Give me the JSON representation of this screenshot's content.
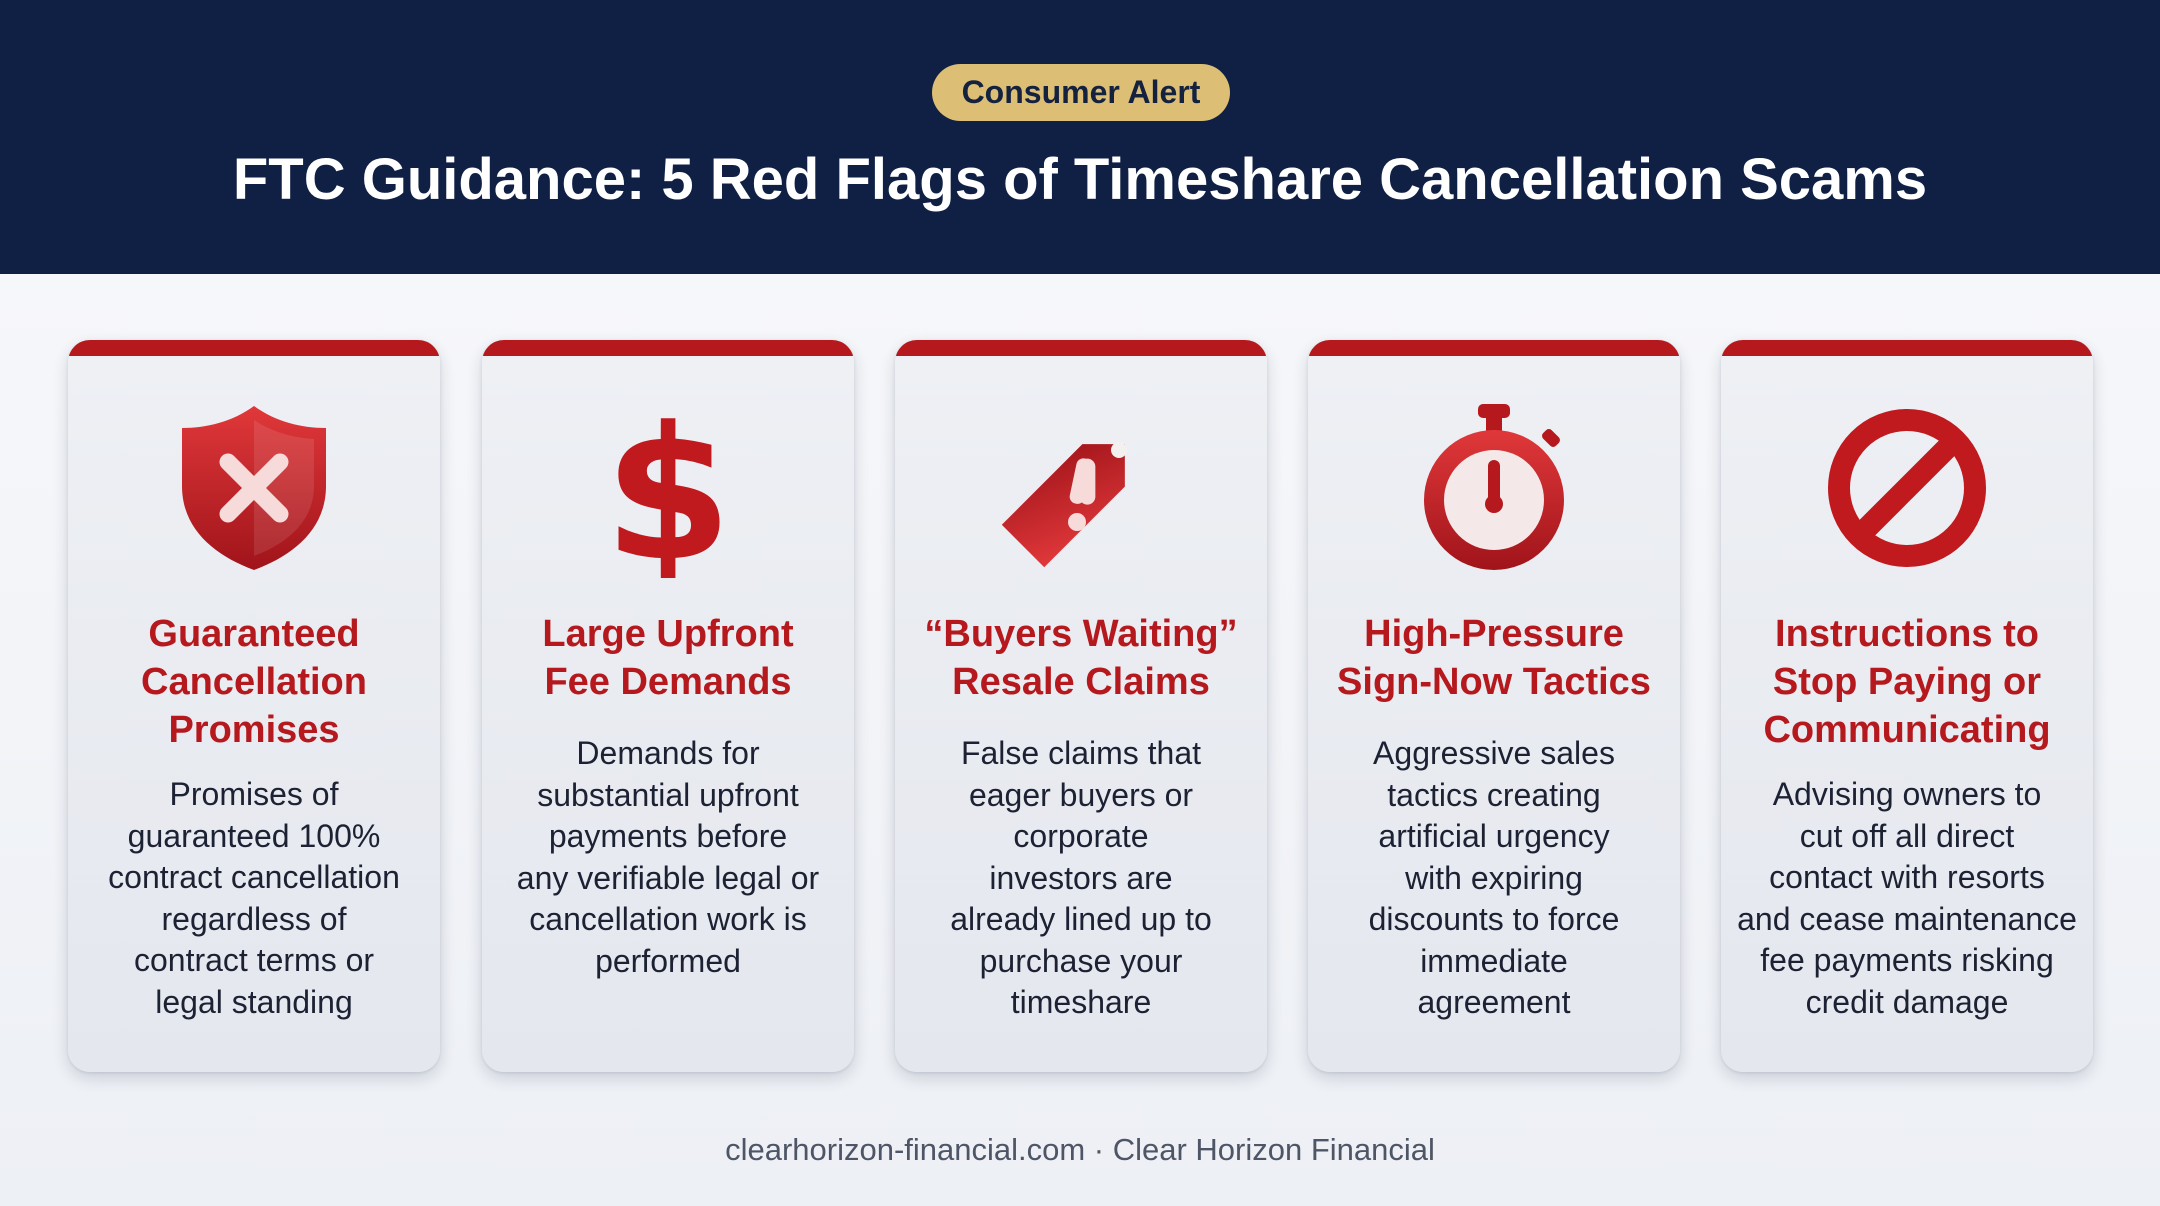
{
  "header": {
    "badge": "Consumer Alert",
    "title": "FTC Guidance: 5 Red Flags of Timeshare Cancellation Scams"
  },
  "colors": {
    "header_bg": "#0f2044",
    "badge_bg": "#dcbf74",
    "accent_red": "#b5191d"
  },
  "cards": [
    {
      "icon": "shield-x-icon",
      "title_lines": [
        "Guaranteed",
        "Cancellation",
        "Promises"
      ],
      "desc_lines": [
        "Promises of",
        "guaranteed 100%",
        "contract cancellation",
        "regardless of",
        "contract terms or",
        "legal standing"
      ]
    },
    {
      "icon": "dollar-sign-icon",
      "title_lines": [
        "Large Upfront",
        "Fee Demands"
      ],
      "desc_lines": [
        "Demands for",
        "substantial upfront",
        "payments before",
        "any verifiable legal or",
        "cancellation work is",
        "performed"
      ]
    },
    {
      "icon": "price-tag-alert-icon",
      "title_lines": [
        "“Buyers Waiting”",
        "Resale Claims"
      ],
      "desc_lines": [
        "False claims that",
        "eager buyers or",
        "corporate",
        "investors are",
        "already lined up to",
        "purchase your",
        "timeshare"
      ]
    },
    {
      "icon": "stopwatch-icon",
      "title_lines": [
        "High-Pressure",
        "Sign-Now Tactics"
      ],
      "desc_lines": [
        "Aggressive sales",
        "tactics creating",
        "artificial urgency",
        "with expiring",
        "discounts to force",
        "immediate",
        "agreement"
      ]
    },
    {
      "icon": "prohibited-icon",
      "title_lines": [
        "Instructions to",
        "Stop Paying or",
        "Communicating"
      ],
      "desc_lines": [
        "Advising owners to",
        "cut off all direct",
        "contact with resorts",
        "and cease maintenance",
        "fee payments risking",
        "credit damage"
      ]
    }
  ],
  "footer": {
    "text": "clearhorizon-financial.com · Clear Horizon Financial"
  }
}
